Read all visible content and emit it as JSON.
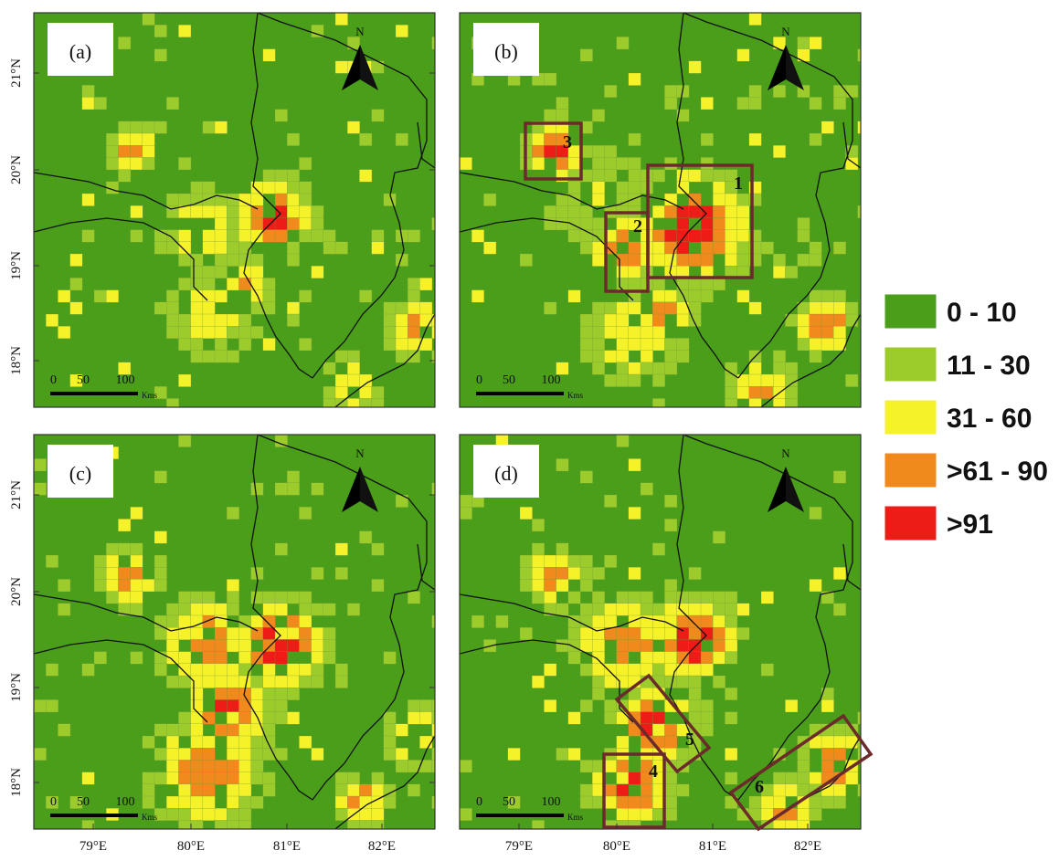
{
  "panels": [
    {
      "id": "a",
      "label": "(a)"
    },
    {
      "id": "b",
      "label": "(b)"
    },
    {
      "id": "c",
      "label": "(c)"
    },
    {
      "id": "d",
      "label": "(d)"
    }
  ],
  "north_label": "N",
  "scale_bar": {
    "ticks": [
      "0",
      "50",
      "100"
    ],
    "unit": "Kms"
  },
  "lat_ticks": [
    "21°N",
    "20°N",
    "19°N",
    "18°N"
  ],
  "lon_ticks": [
    "79°E",
    "80°E",
    "81°E",
    "82°E"
  ],
  "legend": [
    {
      "label": "0 - 10",
      "color": "#4a9e1a"
    },
    {
      "label": "11 - 30",
      "color": "#9ccc2c"
    },
    {
      "label": "31 - 60",
      "color": "#f6f22a"
    },
    {
      "label": ">61 - 90",
      "color": "#f08a1c"
    },
    {
      "label": ">91",
      "color": "#ee1c16"
    }
  ],
  "hotspot_boxes": [
    {
      "panel": "b",
      "number": "1"
    },
    {
      "panel": "b",
      "number": "2"
    },
    {
      "panel": "b",
      "number": "3"
    },
    {
      "panel": "d",
      "number": "4"
    },
    {
      "panel": "d",
      "number": "5"
    },
    {
      "panel": "d",
      "number": "6"
    }
  ],
  "colors": {
    "map_bg": "#4a9e1a",
    "box_stroke": "#6b2b2b",
    "boundary": "#111111"
  }
}
